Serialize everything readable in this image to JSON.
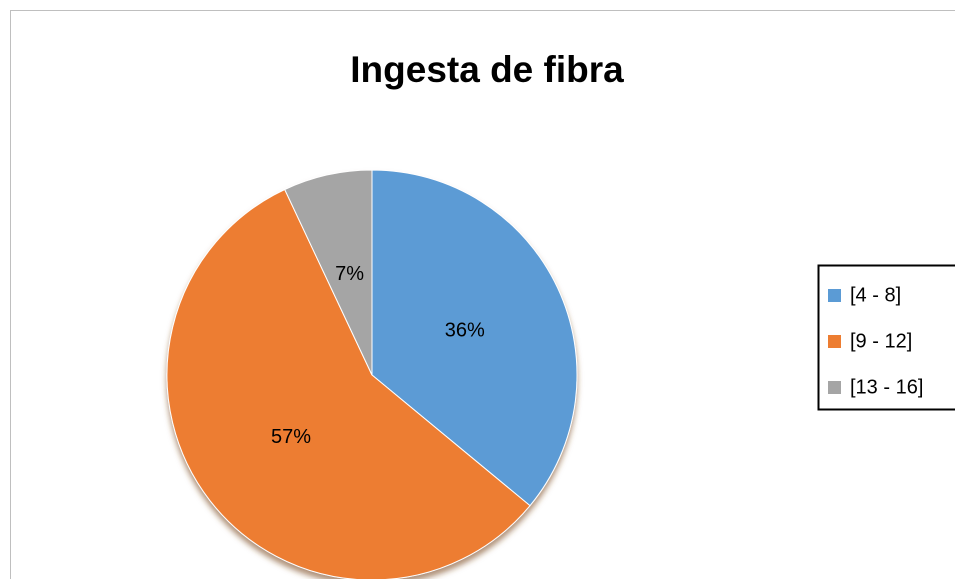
{
  "chart_data": {
    "type": "pie",
    "title": "Ingesta de fibra",
    "categories": [
      "[4 - 8]",
      "[9 - 12]",
      "[13 - 16]"
    ],
    "values": [
      36,
      57,
      7
    ],
    "value_labels": [
      "36%",
      "57%",
      "7%"
    ],
    "colors": [
      "#5b9bd5",
      "#ed7d31",
      "#a5a5a5"
    ],
    "legend": "right"
  }
}
